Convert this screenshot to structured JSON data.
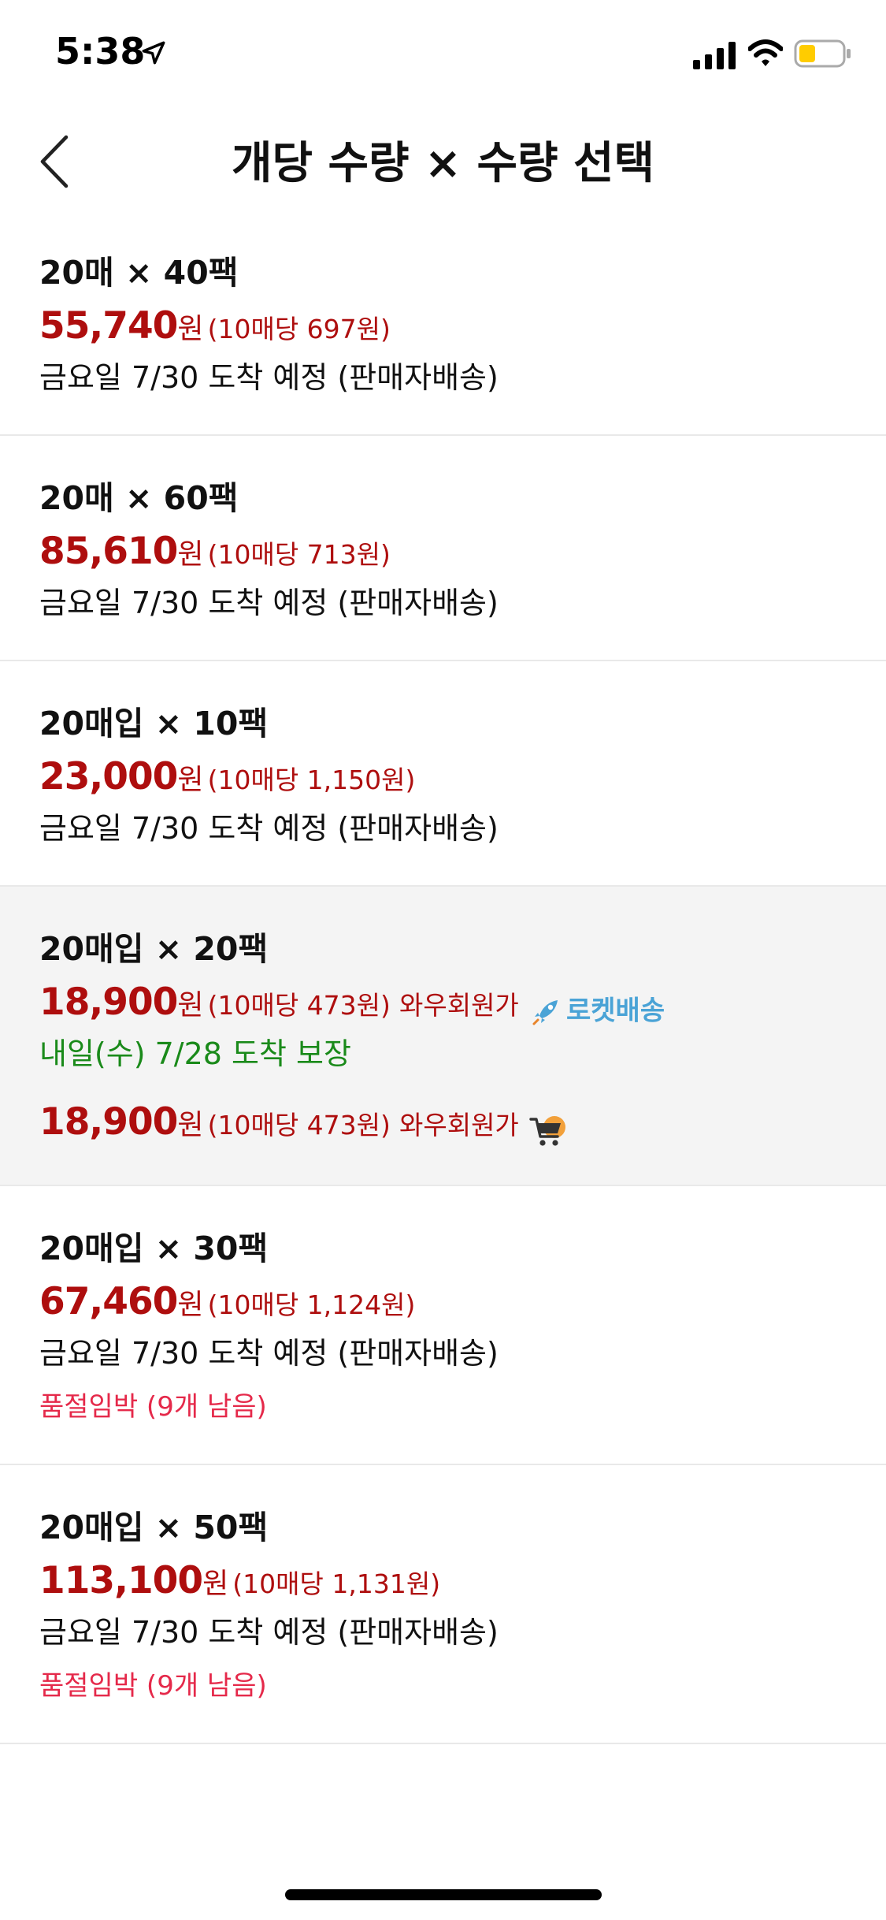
{
  "status_bar": {
    "time": "5:38"
  },
  "header": {
    "title": "개당 수량 × 수량 선택"
  },
  "options": [
    {
      "title": "20매 × 40팩",
      "price": "55,740",
      "won": "원",
      "unit_price": "(10매당 697원)",
      "delivery": "금요일 7/30 도착 예정 (판매자배송)"
    },
    {
      "title": "20매 × 60팩",
      "price": "85,610",
      "won": "원",
      "unit_price": "(10매당 713원)",
      "delivery": "금요일 7/30 도착 예정 (판매자배송)"
    },
    {
      "title": "20매입 × 10팩",
      "price": "23,000",
      "won": "원",
      "unit_price": "(10매당 1,150원)",
      "delivery": "금요일 7/30 도착 예정 (판매자배송)"
    },
    {
      "title": "20매입 × 20팩",
      "price": "18,900",
      "won": "원",
      "unit_price": "(10매당 473원)",
      "wow": "와우회원가",
      "rocket_label": "로켓배송",
      "guarantee": "내일(수) 7/28 도착 보장",
      "price2": "18,900",
      "won2": "원",
      "unit_price2": "(10매당 473원)",
      "wow2": "와우회원가"
    },
    {
      "title": "20매입 × 30팩",
      "price": "67,460",
      "won": "원",
      "unit_price": "(10매당 1,124원)",
      "delivery": "금요일 7/30 도착 예정 (판매자배송)",
      "stock": "품절임박 (9개 남음)"
    },
    {
      "title": "20매입 × 50팩",
      "price": "113,100",
      "won": "원",
      "unit_price": "(10매당 1,131원)",
      "delivery": "금요일 7/30 도착 예정 (판매자배송)",
      "stock": "품절임박 (9개 남음)"
    }
  ],
  "colors": {
    "price": "#ae0e0e",
    "guarantee": "#1a8a1a",
    "stock": "#e5294a",
    "rocket": "#4aa3d6",
    "selected_bg": "#f4f4f4"
  },
  "icons": [
    "location-arrow-icon",
    "signal-icon",
    "wifi-icon",
    "battery-icon",
    "back-chevron-icon",
    "rocket-icon",
    "cart-icon"
  ]
}
